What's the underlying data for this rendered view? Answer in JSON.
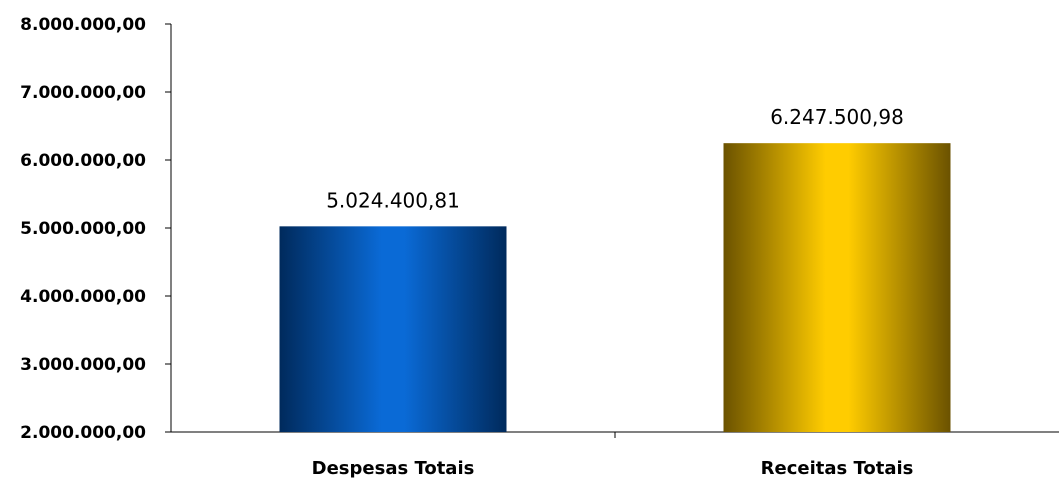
{
  "chart_data": {
    "type": "bar",
    "categories": [
      "Despesas Totais",
      "Receitas Totais"
    ],
    "values": [
      5024400.81,
      6247500.98
    ],
    "data_labels": [
      "5.024.400,81",
      "6.247.500,98"
    ],
    "ylim": [
      2000000,
      8000000
    ],
    "yticks": [
      2000000,
      3000000,
      4000000,
      5000000,
      6000000,
      7000000,
      8000000
    ],
    "ytick_labels": [
      "2.000.000,00",
      "3.000.000,00",
      "4.000.000,00",
      "5.000.000,00",
      "6.000.000,00",
      "7.000.000,00",
      "8.000.000,00"
    ],
    "bar_colors": [
      {
        "edge": "#002a5c",
        "center": "#0a6ad6"
      },
      {
        "edge": "#6b5200",
        "center": "#ffcc00"
      }
    ],
    "grid": false,
    "legend": "none"
  }
}
